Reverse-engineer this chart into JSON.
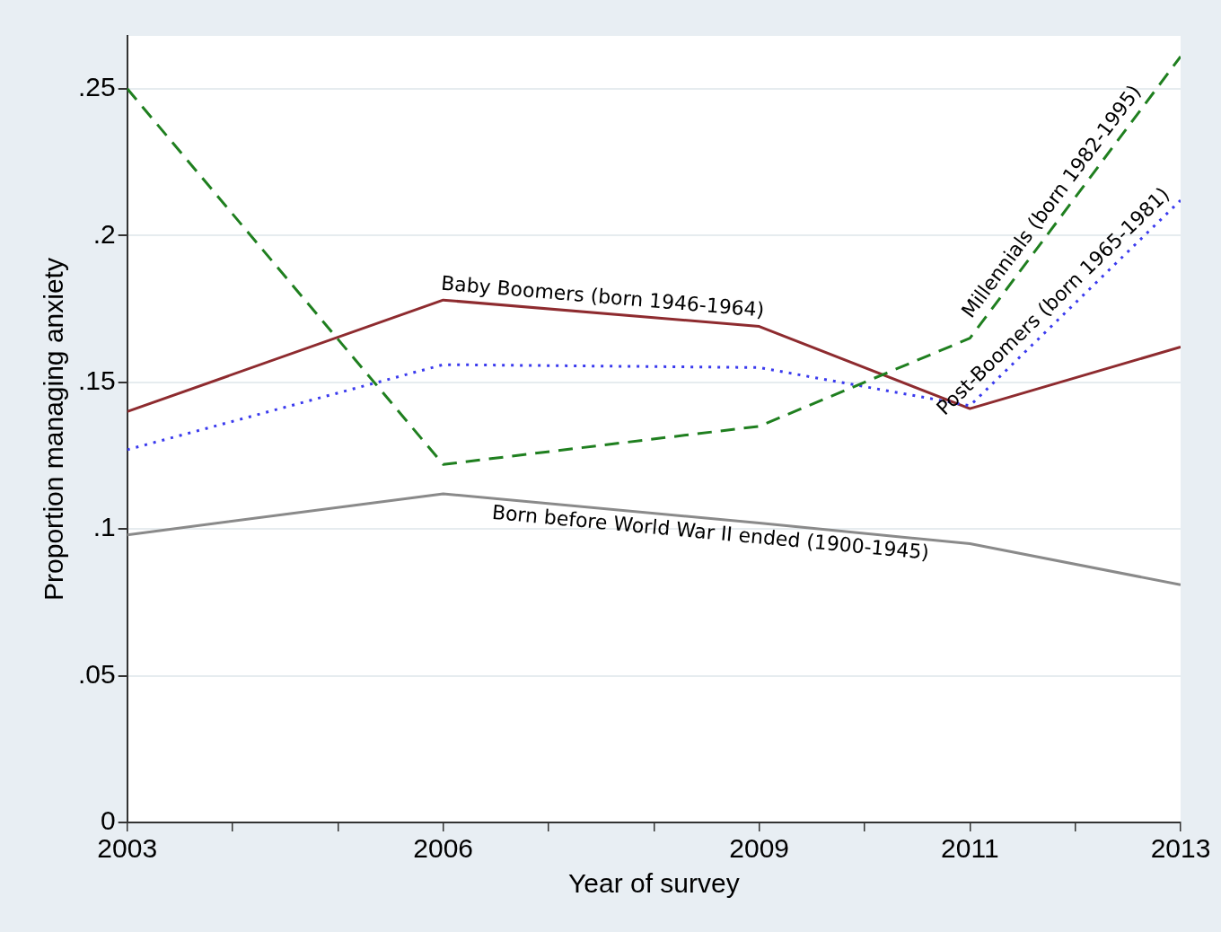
{
  "chart_data": {
    "type": "line",
    "xlabel": "Year of survey",
    "ylabel": "Proportion managing anxiety",
    "x": [
      2003,
      2006,
      2009,
      2011,
      2013
    ],
    "series": [
      {
        "name": "Millennials (born 1982-1995)",
        "color": "#1f7f1f",
        "line_style": "dashed",
        "values": [
          0.25,
          0.122,
          0.135,
          0.165,
          0.261
        ]
      },
      {
        "name": "Post-Boomers (born 1965-1981)",
        "color": "#3a3aee",
        "line_style": "dotted",
        "values": [
          0.127,
          0.156,
          0.155,
          0.142,
          0.212
        ]
      },
      {
        "name": "Baby Boomers (born 1946-1964)",
        "color": "#8e2b2f",
        "line_style": "solid",
        "values": [
          0.14,
          0.178,
          0.169,
          0.141,
          0.162
        ]
      },
      {
        "name": "Born before World War II ended (1900-1945)",
        "color": "#8a8a8a",
        "line_style": "solid",
        "values": [
          0.098,
          0.112,
          0.102,
          0.095,
          0.081
        ]
      }
    ],
    "xlim": [
      2003,
      2013
    ],
    "xticks": [
      2003,
      {
        "value": 2004,
        "label": null
      },
      {
        "value": 2005,
        "label": null
      },
      2006,
      {
        "value": 2007,
        "label": null
      },
      {
        "value": 2008,
        "label": null
      },
      2009,
      {
        "value": 2010,
        "label": null
      },
      2011,
      {
        "value": 2012,
        "label": null
      },
      2013
    ],
    "ylim": [
      0,
      0.268
    ],
    "yticks": [
      {
        "value": 0,
        "label": "0"
      },
      {
        "value": 0.05,
        "label": ".05"
      },
      {
        "value": 0.1,
        "label": ".1"
      },
      {
        "value": 0.15,
        "label": ".15"
      },
      {
        "value": 0.2,
        "label": ".2"
      },
      {
        "value": 0.25,
        "label": ".25"
      }
    ],
    "grid": "y",
    "legend": false,
    "marker": "none"
  }
}
